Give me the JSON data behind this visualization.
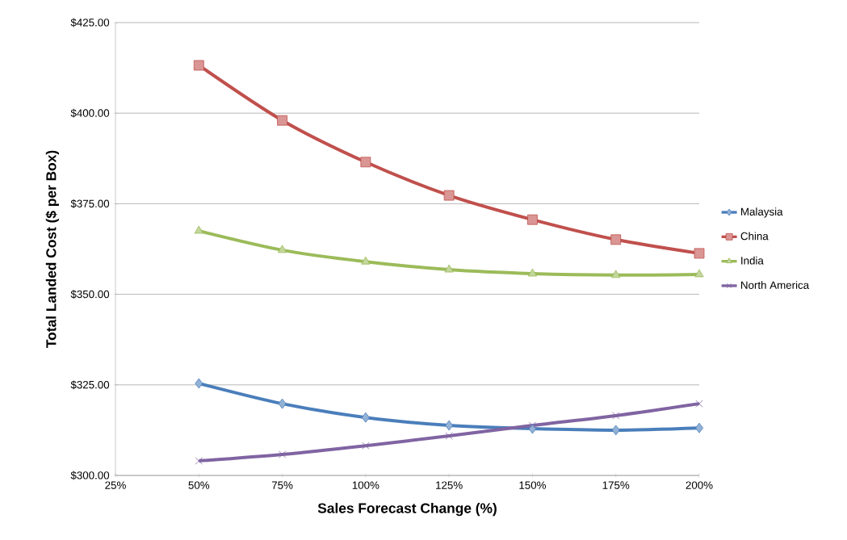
{
  "chart_data": {
    "type": "line",
    "xlabel": "Sales Forecast Change (%)",
    "ylabel": "Total Landed Cost ($ per Box)",
    "x": [
      50,
      75,
      100,
      125,
      150,
      175,
      200
    ],
    "series": [
      {
        "name": "Malaysia",
        "color": "#4a7ebb",
        "marker": "diamond",
        "values": [
          325.4,
          319.8,
          316.0,
          313.8,
          312.9,
          312.5,
          313.1
        ]
      },
      {
        "name": "China",
        "color": "#c0504d",
        "marker": "square",
        "values": [
          413.2,
          398.0,
          386.5,
          377.3,
          370.6,
          365.1,
          361.3
        ]
      },
      {
        "name": "India",
        "color": "#9bbb59",
        "marker": "triangle",
        "values": [
          367.5,
          362.2,
          359.0,
          356.8,
          355.7,
          355.3,
          355.5
        ]
      },
      {
        "name": "North America",
        "color": "#8064a2",
        "marker": "cross",
        "values": [
          304.0,
          305.8,
          308.2,
          310.9,
          313.8,
          316.5,
          319.8
        ]
      }
    ],
    "xlim": [
      25,
      200
    ],
    "ylim": [
      300,
      425
    ],
    "xticks": [
      {
        "value": 25,
        "label": "25%"
      },
      {
        "value": 50,
        "label": "50%"
      },
      {
        "value": 75,
        "label": "75%"
      },
      {
        "value": 100,
        "label": "100%"
      },
      {
        "value": 125,
        "label": "125%"
      },
      {
        "value": 150,
        "label": "150%"
      },
      {
        "value": 175,
        "label": "175%"
      },
      {
        "value": 200,
        "label": "200%"
      }
    ],
    "yticks": [
      {
        "value": 300,
        "label": "$300.00"
      },
      {
        "value": 325,
        "label": "$325.00"
      },
      {
        "value": 350,
        "label": "$350.00"
      },
      {
        "value": 375,
        "label": "$375.00"
      },
      {
        "value": 400,
        "label": "$400.00"
      },
      {
        "value": 425,
        "label": "$425.00"
      }
    ],
    "grid": "y",
    "legend": "right",
    "line_style": "solid"
  }
}
